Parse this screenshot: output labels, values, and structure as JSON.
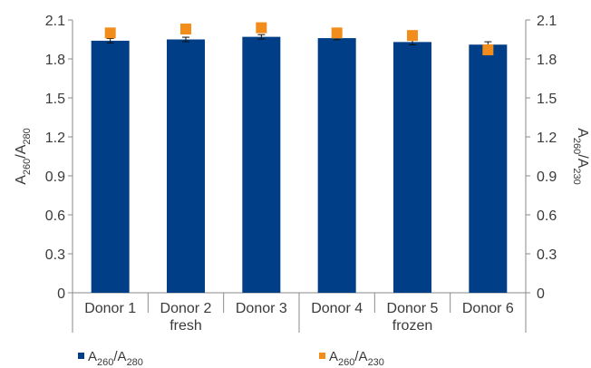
{
  "chart_data": {
    "type": "bar",
    "categories": [
      "Donor 1",
      "Donor 2",
      "Donor 3",
      "Donor 4",
      "Donor 5",
      "Donor 6"
    ],
    "groups": [
      {
        "label": "fresh",
        "categories": [
          "Donor 1",
          "Donor 2",
          "Donor 3"
        ]
      },
      {
        "label": "frozen",
        "categories": [
          "Donor 4",
          "Donor 5",
          "Donor 6"
        ]
      }
    ],
    "series": [
      {
        "name": "A260/A280",
        "name_parts": {
          "base": "A",
          "sub1": "260",
          "sep": "/A",
          "sub2": "280"
        },
        "kind": "bar",
        "axis": "left",
        "color": "#003f87",
        "values": [
          1.94,
          1.95,
          1.97,
          1.96,
          1.93,
          1.91
        ],
        "error": [
          0.01,
          0.01,
          0.01,
          0.005,
          0.015,
          0.015
        ]
      },
      {
        "name": "A260/A230",
        "name_parts": {
          "base": "A",
          "sub1": "260",
          "sep": "/A",
          "sub2": "230"
        },
        "kind": "marker",
        "axis": "right",
        "color": "#f28c1a",
        "values": [
          2.0,
          2.03,
          2.04,
          2.0,
          1.98,
          1.87
        ]
      }
    ],
    "yaxis_left": {
      "title_parts": {
        "base": "A",
        "sub1": "260",
        "sep": "/A",
        "sub2": "280"
      },
      "ylim": [
        0,
        2.1
      ],
      "ticks": [
        "0",
        "0.3",
        "0.6",
        "0.9",
        "1.2",
        "1.5",
        "1.8",
        "2.1"
      ],
      "tick_values": [
        0,
        0.3,
        0.6,
        0.9,
        1.2,
        1.5,
        1.8,
        2.1
      ]
    },
    "yaxis_right": {
      "title_parts": {
        "base": "A",
        "sub1": "260",
        "sep": "/A",
        "sub2": "230"
      },
      "ylim": [
        0,
        2.1
      ],
      "ticks": [
        "0",
        "0.3",
        "0.6",
        "0.9",
        "1.2",
        "1.5",
        "1.8",
        "2.1"
      ],
      "tick_values": [
        0,
        0.3,
        0.6,
        0.9,
        1.2,
        1.5,
        1.8,
        2.1
      ]
    },
    "grid": false,
    "legend_position": "bottom"
  }
}
